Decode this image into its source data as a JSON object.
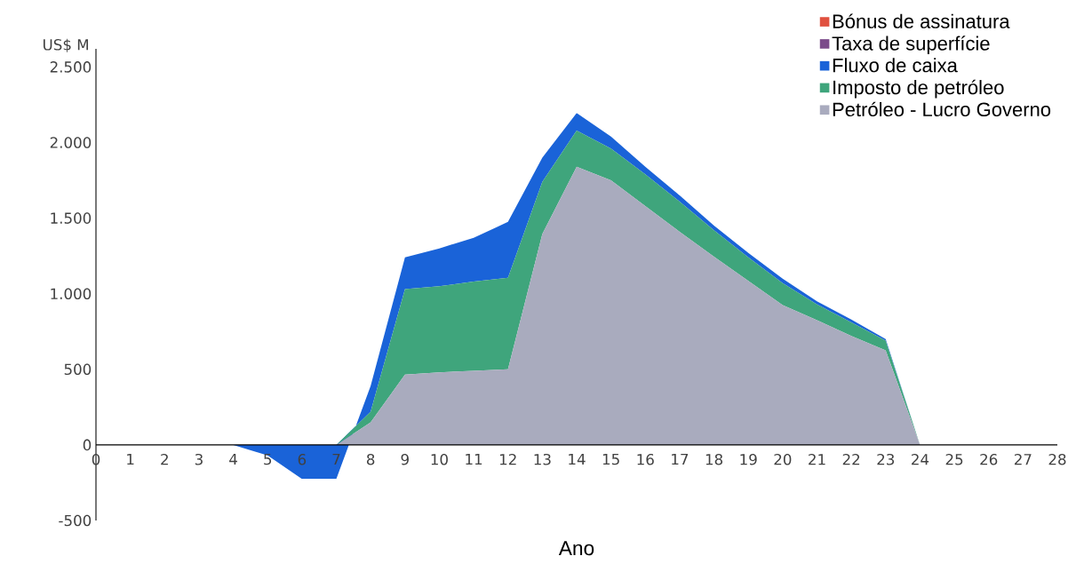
{
  "chart_data": {
    "type": "area",
    "stacked": true,
    "xlabel": "Ano",
    "ylabel": "US$ M",
    "legend": "top right",
    "x": [
      0,
      1,
      2,
      3,
      4,
      5,
      6,
      7,
      8,
      9,
      10,
      11,
      12,
      13,
      14,
      15,
      16,
      17,
      18,
      19,
      20,
      21,
      22,
      23,
      24,
      25,
      26,
      27,
      28
    ],
    "series": [
      {
        "name": "Petróleo - Lucro Governo",
        "color": "#a9abbe",
        "values": [
          0,
          0,
          0,
          0,
          0,
          0,
          0,
          0,
          150,
          465,
          480,
          490,
          500,
          1395,
          1840,
          1750,
          1580,
          1410,
          1245,
          1085,
          925,
          825,
          720,
          625,
          0,
          0,
          0,
          0,
          0
        ]
      },
      {
        "name": "Imposto de petróleo",
        "color": "#3fa57c",
        "values": [
          0,
          0,
          0,
          0,
          0,
          0,
          0,
          0,
          70,
          565,
          570,
          590,
          605,
          345,
          240,
          210,
          210,
          200,
          175,
          155,
          145,
          105,
          90,
          65,
          0,
          0,
          0,
          0,
          0
        ]
      },
      {
        "name": "Fluxo de caixa",
        "color": "#1a63d8",
        "values": [
          0,
          0,
          0,
          0,
          0,
          -70,
          -225,
          -225,
          170,
          210,
          250,
          290,
          370,
          160,
          115,
          80,
          50,
          40,
          30,
          30,
          30,
          20,
          20,
          10,
          0,
          0,
          0,
          0,
          0
        ]
      },
      {
        "name": "Taxa de superfície",
        "color": "#7b4a8a",
        "values": [
          null,
          null,
          null,
          null,
          null,
          null,
          null,
          null,
          null,
          null,
          null,
          null,
          null,
          null,
          null,
          null,
          null,
          null,
          null,
          null,
          null,
          null,
          null,
          null,
          null,
          null,
          null,
          null,
          null
        ]
      },
      {
        "name": "Bónus de assinatura",
        "color": "#e0503f",
        "values": [
          null,
          null,
          null,
          null,
          null,
          null,
          null,
          null,
          null,
          null,
          null,
          null,
          null,
          null,
          null,
          null,
          null,
          null,
          null,
          null,
          null,
          null,
          null,
          null,
          null,
          null,
          null,
          null,
          null
        ]
      }
    ],
    "xlim": [
      0,
      28
    ],
    "xticks": [
      0,
      1,
      2,
      3,
      4,
      5,
      6,
      7,
      8,
      9,
      10,
      11,
      12,
      13,
      14,
      15,
      16,
      17,
      18,
      19,
      20,
      21,
      22,
      23,
      24,
      25,
      26,
      27,
      28
    ],
    "ylim": [
      -500,
      2620
    ],
    "yticks": [
      {
        "value": -500,
        "label": "-500"
      },
      {
        "value": 0,
        "label": "0"
      },
      {
        "value": 500,
        "label": "500"
      },
      {
        "value": 1000,
        "label": "1.000"
      },
      {
        "value": 1500,
        "label": "1.500"
      },
      {
        "value": 2000,
        "label": "2.000"
      },
      {
        "value": 2500,
        "label": "2.500"
      }
    ]
  }
}
